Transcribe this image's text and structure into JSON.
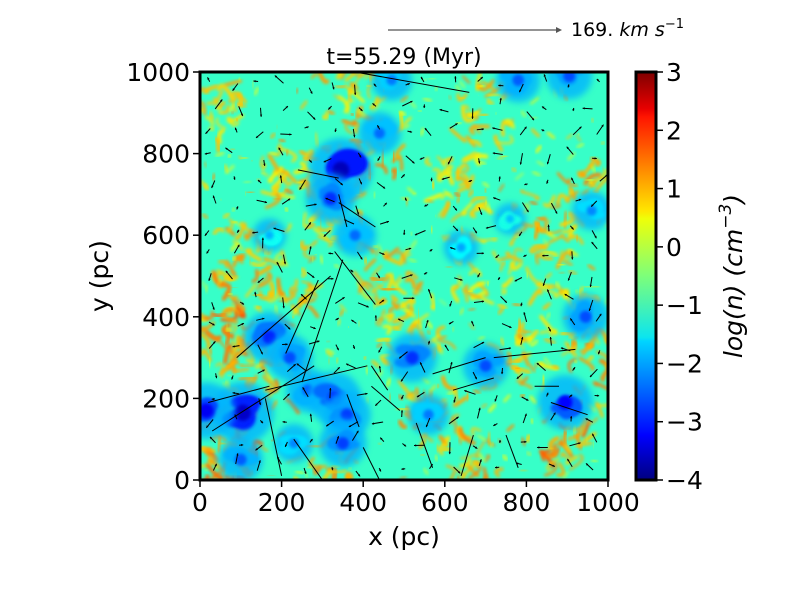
{
  "chart_data": {
    "type": "heatmap",
    "title": "t=55.29 (Myr)",
    "xlabel": "x (pc)",
    "ylabel": "y (pc)",
    "xlim": [
      0,
      1000
    ],
    "ylim": [
      0,
      1000
    ],
    "xticks": [
      "0",
      "200",
      "400",
      "600",
      "800",
      "1000"
    ],
    "yticks": [
      "0",
      "200",
      "400",
      "600",
      "800",
      "1000"
    ],
    "colorbar": {
      "label": "log(n) (cm^-3)",
      "label_base": "log(n)",
      "label_unit": "cm",
      "label_exponent": "−3",
      "range": [
        -4,
        3
      ],
      "ticks": [
        "3",
        "2",
        "1",
        "0",
        "−1",
        "−2",
        "−3",
        "−4"
      ],
      "colormap": "jet"
    },
    "background_level": -1,
    "reference_arrow": {
      "value": "169.",
      "unit": "km s",
      "unit_exponent": "−1"
    },
    "dense_regions": [
      {
        "x": 40,
        "y": 350,
        "value": 1.5
      },
      {
        "x": 25,
        "y": 420,
        "value": 1.3
      },
      {
        "x": 80,
        "y": 120,
        "value": 1.4
      },
      {
        "x": 150,
        "y": 270,
        "value": 1.2
      },
      {
        "x": 60,
        "y": 30,
        "value": 1.5
      },
      {
        "x": 300,
        "y": 20,
        "value": 1.3
      },
      {
        "x": 230,
        "y": 760,
        "value": 1.0
      },
      {
        "x": 120,
        "y": 560,
        "value": 1.1
      },
      {
        "x": 420,
        "y": 810,
        "value": 1.2
      },
      {
        "x": 480,
        "y": 500,
        "value": 1.1
      },
      {
        "x": 520,
        "y": 360,
        "value": 1.0
      },
      {
        "x": 560,
        "y": 150,
        "value": 1.2
      },
      {
        "x": 660,
        "y": 60,
        "value": 1.3
      },
      {
        "x": 720,
        "y": 900,
        "value": 1.0
      },
      {
        "x": 850,
        "y": 620,
        "value": 1.1
      },
      {
        "x": 970,
        "y": 700,
        "value": 1.2
      },
      {
        "x": 880,
        "y": 80,
        "value": 1.4
      },
      {
        "x": 980,
        "y": 260,
        "value": 1.3
      },
      {
        "x": 360,
        "y": 950,
        "value": 1.0
      },
      {
        "x": 640,
        "y": 720,
        "value": 0.9
      },
      {
        "x": 210,
        "y": 440,
        "value": 1.2
      },
      {
        "x": 900,
        "y": 420,
        "value": 1.0
      },
      {
        "x": 780,
        "y": 300,
        "value": 1.0
      },
      {
        "x": 330,
        "y": 640,
        "value": 1.0
      },
      {
        "x": 700,
        "y": 520,
        "value": 0.9
      },
      {
        "x": 20,
        "y": 900,
        "value": 1.0
      }
    ],
    "diffuse_regions": [
      {
        "x": 345,
        "y": 760,
        "value": -3.6
      },
      {
        "x": 320,
        "y": 690,
        "value": -2.8
      },
      {
        "x": 380,
        "y": 600,
        "value": -2.4
      },
      {
        "x": 105,
        "y": 165,
        "value": -3.5
      },
      {
        "x": 15,
        "y": 170,
        "value": -3.2
      },
      {
        "x": 170,
        "y": 350,
        "value": -2.9
      },
      {
        "x": 220,
        "y": 300,
        "value": -2.6
      },
      {
        "x": 265,
        "y": 220,
        "value": -2.5
      },
      {
        "x": 330,
        "y": 200,
        "value": -3.0
      },
      {
        "x": 360,
        "y": 160,
        "value": -2.7
      },
      {
        "x": 440,
        "y": 850,
        "value": -2.4
      },
      {
        "x": 520,
        "y": 300,
        "value": -2.8
      },
      {
        "x": 700,
        "y": 280,
        "value": -2.6
      },
      {
        "x": 560,
        "y": 160,
        "value": -2.3
      },
      {
        "x": 895,
        "y": 190,
        "value": -3.1
      },
      {
        "x": 945,
        "y": 400,
        "value": -2.6
      },
      {
        "x": 960,
        "y": 660,
        "value": -2.2
      },
      {
        "x": 780,
        "y": 980,
        "value": -2.5
      },
      {
        "x": 905,
        "y": 990,
        "value": -2.6
      },
      {
        "x": 640,
        "y": 570,
        "value": -2.0
      },
      {
        "x": 100,
        "y": 50,
        "value": -2.5
      },
      {
        "x": 350,
        "y": 90,
        "value": -2.7
      },
      {
        "x": 230,
        "y": 90,
        "value": -2.2
      },
      {
        "x": 760,
        "y": 640,
        "value": -1.8
      },
      {
        "x": 170,
        "y": 600,
        "value": -1.9
      },
      {
        "x": 470,
        "y": 980,
        "value": -2.3
      }
    ],
    "velocity_field_grid": {
      "columns": 17,
      "rows": 17
    },
    "long_vectors": [
      {
        "x": 160,
        "y": 220,
        "dx": 250,
        "dy": 60
      },
      {
        "x": 170,
        "y": 230,
        "dx": -150,
        "dy": -40
      },
      {
        "x": 90,
        "y": 300,
        "dx": 230,
        "dy": 200
      },
      {
        "x": 250,
        "y": 240,
        "dx": 100,
        "dy": 300
      },
      {
        "x": 160,
        "y": 200,
        "dx": 40,
        "dy": -190
      },
      {
        "x": 30,
        "y": 120,
        "dx": 250,
        "dy": 160
      },
      {
        "x": 340,
        "y": 680,
        "dx": 90,
        "dy": -60
      },
      {
        "x": 340,
        "y": 740,
        "dx": -100,
        "dy": 20
      },
      {
        "x": 340,
        "y": 700,
        "dx": 20,
        "dy": -80
      },
      {
        "x": 290,
        "y": 490,
        "dx": -80,
        "dy": -180
      },
      {
        "x": 330,
        "y": 560,
        "dx": 100,
        "dy": -130
      },
      {
        "x": 720,
        "y": 300,
        "dx": 200,
        "dy": 20
      },
      {
        "x": 700,
        "y": 300,
        "dx": -130,
        "dy": -40
      },
      {
        "x": 620,
        "y": 220,
        "dx": 100,
        "dy": 30
      },
      {
        "x": 420,
        "y": 230,
        "dx": 70,
        "dy": -60
      },
      {
        "x": 360,
        "y": 210,
        "dx": 30,
        "dy": -80
      },
      {
        "x": 640,
        "y": 10,
        "dx": 30,
        "dy": 100
      },
      {
        "x": 780,
        "y": 30,
        "dx": -30,
        "dy": 80
      },
      {
        "x": 860,
        "y": 190,
        "dx": 90,
        "dy": -30
      },
      {
        "x": 380,
        "y": 1000,
        "dx": 280,
        "dy": -50
      },
      {
        "x": 880,
        "y": 230,
        "dx": -60,
        "dy": 0
      },
      {
        "x": 230,
        "y": 100,
        "dx": 70,
        "dy": -100
      },
      {
        "x": 400,
        "y": 80,
        "dx": 40,
        "dy": -80
      },
      {
        "x": 530,
        "y": 140,
        "dx": 40,
        "dy": -110
      },
      {
        "x": 460,
        "y": 220,
        "dx": -40,
        "dy": 60
      }
    ]
  }
}
